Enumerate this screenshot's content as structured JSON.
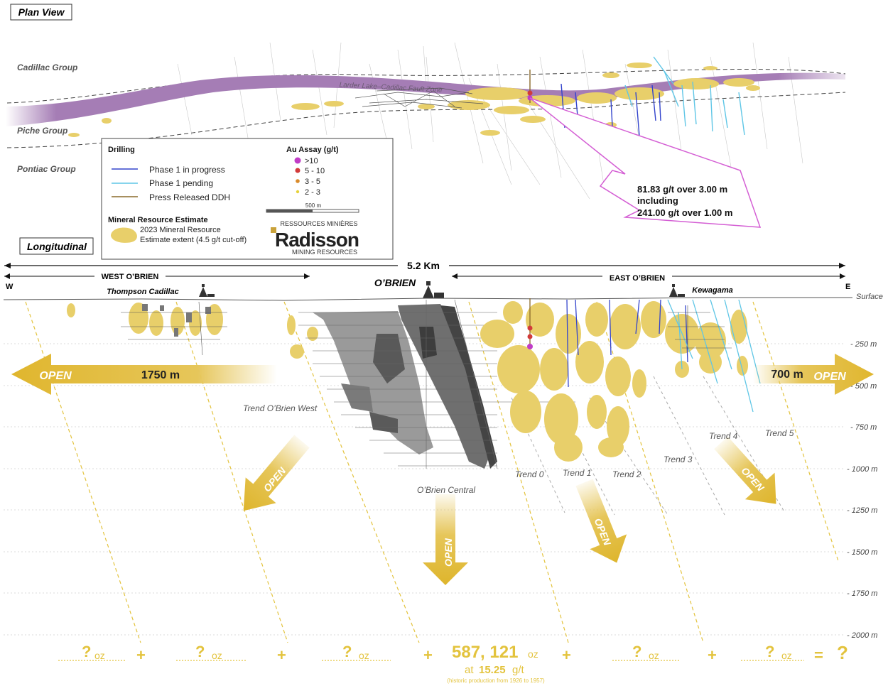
{
  "plan_view": {
    "title": "Plan View",
    "groups": [
      "Cadillac Group",
      "Piche Group",
      "Pontiac Group"
    ],
    "fault_label": "Larder Lake–Cadillac Fault Zone"
  },
  "legend": {
    "drilling_title": "Drilling",
    "drilling_items": [
      {
        "label": "Phase 1 in progress",
        "color": "#3344cc"
      },
      {
        "label": "Phase 1 pending",
        "color": "#5fc6e6"
      },
      {
        "label": "Press Released DDH",
        "color": "#8a6a2a"
      }
    ],
    "assay_title": "Au Assay (g/t)",
    "assay_items": [
      {
        "label": ">10",
        "color": "#c03cc6"
      },
      {
        "label": "5 - 10",
        "color": "#d23a3a"
      },
      {
        "label": "3 - 5",
        "color": "#d98a2a"
      },
      {
        "label": "2 - 3",
        "color": "#e6d13a"
      }
    ],
    "scale_label": "500 m",
    "mre_title": "Mineral Resource Estimate",
    "mre_line1": "2023 Mineral Resource",
    "mre_line2": "Estimate extent (4.5  g/t cut-off)"
  },
  "logo": {
    "top": "RESSOURCES MINIÈRES",
    "name": "Radisson",
    "bottom": "MINING RESOURCES"
  },
  "callout": {
    "line1": "81.83 g/t over 3.00 m",
    "line2": "including",
    "line3": "241.00 g/t over 1.00 m"
  },
  "longitudinal": {
    "title": "Longitudinal",
    "length": "5.2 Km",
    "west_label": "WEST O’BRIEN",
    "east_label": "EAST O’BRIEN",
    "w": "W",
    "e": "E",
    "sites": [
      "Thompson Cadillac",
      "O’BRIEN",
      "Kewagama"
    ],
    "surface": "Surface",
    "depths": [
      "- 250 m",
      "- 500 m",
      "- 750 m",
      "- 1000 m",
      "- 1250 m",
      "- 1500 m",
      "- 1750 m",
      "- 2000 m"
    ],
    "open": "OPEN",
    "west_open_dist": "1750 m",
    "east_open_dist": "700 m",
    "trends": [
      "Trend O’Brien West",
      "O’Brien Central",
      "Trend 0",
      "Trend 1",
      "Trend 2",
      "Trend 3",
      "Trend 4",
      "Trend 5"
    ]
  },
  "summary": {
    "unknown": "?",
    "oz": "oz",
    "plus": "+",
    "equals": "=",
    "production_value": "587, 121",
    "production_at": "at",
    "grade": "15.25",
    "grade_unit": "g/t",
    "historic_note": "(historic production from 1926 to 1957)"
  },
  "colors": {
    "gold": "#e8cf6a",
    "gold_text": "#e3c33d",
    "fault": "#a57db5"
  }
}
